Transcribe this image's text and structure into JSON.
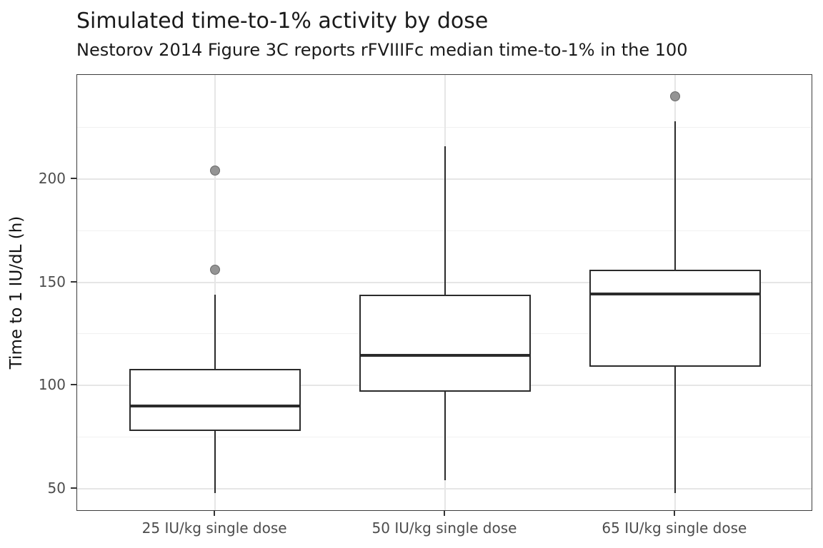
{
  "chart_data": {
    "type": "boxplot",
    "title": "Simulated time-to-1% activity by dose",
    "subtitle": "Nestorov 2014 Figure 3C reports rFVIIIFc median time-to-1% in the 100",
    "ylabel": "Time to 1 IU/dL (h)",
    "xlabel": "",
    "ylim": [
      38.9,
      250.5
    ],
    "y_major_ticks": [
      50,
      100,
      150,
      200
    ],
    "y_minor_gridlines": [
      75,
      125,
      175,
      225
    ],
    "grid": true,
    "legend_position": "none",
    "categories": [
      "25 IU/kg single dose",
      "50 IU/kg single dose",
      "65 IU/kg single dose"
    ],
    "series": [
      {
        "category": "25 IU/kg single dose",
        "whisker_low": 48,
        "q1": 78,
        "median": 90,
        "q3": 108,
        "whisker_high": 144,
        "outliers": [
          156,
          204
        ]
      },
      {
        "category": "50 IU/kg single dose",
        "whisker_low": 54,
        "q1": 97,
        "median": 114.5,
        "q3": 144,
        "whisker_high": 216,
        "outliers": []
      },
      {
        "category": "65 IU/kg single dose",
        "whisker_low": 48,
        "q1": 109,
        "median": 144.5,
        "q3": 156,
        "whisker_high": 228,
        "outliers": [
          240
        ]
      }
    ],
    "colors": {
      "box_stroke": "#2b2b2b",
      "box_fill": "#ffffff",
      "outlier_fill": "#949494",
      "outlier_stroke": "#696969",
      "grid_major": "#e6e6e6",
      "grid_minor": "#f1f1f1",
      "panel_border": "#3d3d3d",
      "tick_label": "#4d4d4d",
      "title_color": "#1a1a1a"
    }
  }
}
